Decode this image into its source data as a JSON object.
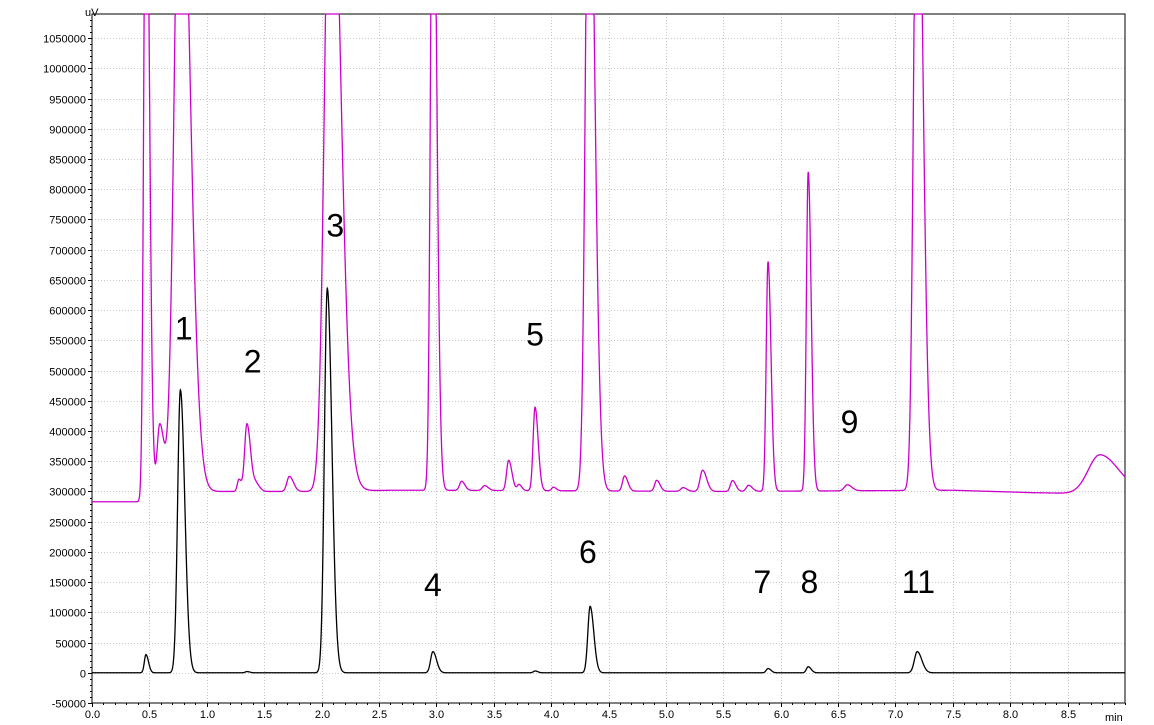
{
  "chart_data": {
    "type": "line",
    "title": "",
    "xlabel": "",
    "ylabel": "",
    "x_unit": "min",
    "y_unit": "uV",
    "xlim": [
      0.0,
      9.0
    ],
    "ylim": [
      -50000,
      1090000
    ],
    "grid": true,
    "x_ticks": [
      {
        "value": 0.0,
        "label": "0.0"
      },
      {
        "value": 0.5,
        "label": "0.5"
      },
      {
        "value": 1.0,
        "label": "1.0"
      },
      {
        "value": 1.5,
        "label": "1.5"
      },
      {
        "value": 2.0,
        "label": "2.0"
      },
      {
        "value": 2.5,
        "label": "2.5"
      },
      {
        "value": 3.0,
        "label": "3.0"
      },
      {
        "value": 3.5,
        "label": "3.5"
      },
      {
        "value": 4.0,
        "label": "4.0"
      },
      {
        "value": 4.5,
        "label": "4.5"
      },
      {
        "value": 5.0,
        "label": "5.0"
      },
      {
        "value": 5.5,
        "label": "5.5"
      },
      {
        "value": 6.0,
        "label": "6.0"
      },
      {
        "value": 6.5,
        "label": "6.5"
      },
      {
        "value": 7.0,
        "label": "7.0"
      },
      {
        "value": 7.5,
        "label": "7.5"
      },
      {
        "value": 8.0,
        "label": "8.0"
      },
      {
        "value": 8.5,
        "label": "8.5"
      }
    ],
    "y_ticks": [
      {
        "value": 1050000,
        "label": "1050000"
      },
      {
        "value": 1000000,
        "label": "1000000"
      },
      {
        "value": 950000,
        "label": "950000"
      },
      {
        "value": 900000,
        "label": "900000"
      },
      {
        "value": 850000,
        "label": "850000"
      },
      {
        "value": 800000,
        "label": "800000"
      },
      {
        "value": 750000,
        "label": "750000"
      },
      {
        "value": 700000,
        "label": "700000"
      },
      {
        "value": 650000,
        "label": "650000"
      },
      {
        "value": 600000,
        "label": "600000"
      },
      {
        "value": 550000,
        "label": "550000"
      },
      {
        "value": 500000,
        "label": "500000"
      },
      {
        "value": 450000,
        "label": "450000"
      },
      {
        "value": 400000,
        "label": "400000"
      },
      {
        "value": 350000,
        "label": "350000"
      },
      {
        "value": 300000,
        "label": "300000"
      },
      {
        "value": 250000,
        "label": "250000"
      },
      {
        "value": 200000,
        "label": "200000"
      },
      {
        "value": 150000,
        "label": "150000"
      },
      {
        "value": 100000,
        "label": "100000"
      },
      {
        "value": 50000,
        "label": "50000"
      },
      {
        "value": 0,
        "label": "0"
      },
      {
        "value": -50000,
        "label": "-50000"
      }
    ],
    "series": [
      {
        "color": "#cc00cc",
        "baseline": [
          [
            0.0,
            283000
          ],
          [
            0.42,
            283000
          ],
          [
            0.5,
            300000
          ],
          [
            2.0,
            300000
          ],
          [
            2.6,
            302000
          ],
          [
            3.0,
            302000
          ],
          [
            5.5,
            300000
          ],
          [
            7.5,
            302000
          ],
          [
            8.2,
            298000
          ],
          [
            8.5,
            297000
          ],
          [
            9.0,
            300000
          ]
        ],
        "peaks": [
          {
            "rt": 0.47,
            "height": 1200000,
            "width": 0.018
          },
          {
            "rt": 0.59,
            "height": 110000,
            "width": 0.022
          },
          {
            "rt": 0.77,
            "height": 1200000,
            "width": 0.05
          },
          {
            "rt": 1.28,
            "height": 20000,
            "width": 0.014
          },
          {
            "rt": 1.35,
            "height": 112000,
            "width": 0.02
          },
          {
            "rt": 1.43,
            "height": 12000,
            "width": 0.02
          },
          {
            "rt": 1.72,
            "height": 25000,
            "width": 0.022
          },
          {
            "rt": 2.08,
            "height": 1200000,
            "width": 0.05
          },
          {
            "rt": 2.2,
            "height": 30000,
            "width": 0.05
          },
          {
            "rt": 2.97,
            "height": 1200000,
            "width": 0.02
          },
          {
            "rt": 3.22,
            "height": 15000,
            "width": 0.018
          },
          {
            "rt": 3.42,
            "height": 8000,
            "width": 0.02
          },
          {
            "rt": 3.63,
            "height": 50000,
            "width": 0.018
          },
          {
            "rt": 3.72,
            "height": 10000,
            "width": 0.015
          },
          {
            "rt": 3.86,
            "height": 138000,
            "width": 0.017
          },
          {
            "rt": 4.02,
            "height": 6000,
            "width": 0.015
          },
          {
            "rt": 4.33,
            "height": 1200000,
            "width": 0.03
          },
          {
            "rt": 4.64,
            "height": 25000,
            "width": 0.018
          },
          {
            "rt": 4.92,
            "height": 18000,
            "width": 0.018
          },
          {
            "rt": 5.15,
            "height": 6000,
            "width": 0.02
          },
          {
            "rt": 5.32,
            "height": 35000,
            "width": 0.022
          },
          {
            "rt": 5.58,
            "height": 18000,
            "width": 0.018
          },
          {
            "rt": 5.72,
            "height": 10000,
            "width": 0.02
          },
          {
            "rt": 5.89,
            "height": 380000,
            "width": 0.016
          },
          {
            "rt": 6.24,
            "height": 528000,
            "width": 0.016
          },
          {
            "rt": 6.58,
            "height": 10000,
            "width": 0.025
          },
          {
            "rt": 7.19,
            "height": 1200000,
            "width": 0.03
          },
          {
            "rt": 8.78,
            "height": 62000,
            "width": 0.1
          }
        ]
      },
      {
        "color": "#000000",
        "baseline": [
          [
            0.0,
            0
          ],
          [
            9.0,
            0
          ]
        ],
        "peaks": [
          {
            "rt": 0.47,
            "height": 30000,
            "width": 0.014
          },
          {
            "rt": 0.77,
            "height": 468000,
            "width": 0.024
          },
          {
            "rt": 1.35,
            "height": 2000,
            "width": 0.015
          },
          {
            "rt": 2.05,
            "height": 636000,
            "width": 0.025
          },
          {
            "rt": 2.97,
            "height": 35000,
            "width": 0.02
          },
          {
            "rt": 3.86,
            "height": 3000,
            "width": 0.015
          },
          {
            "rt": 4.34,
            "height": 110000,
            "width": 0.02
          },
          {
            "rt": 5.89,
            "height": 7000,
            "width": 0.016
          },
          {
            "rt": 6.24,
            "height": 10000,
            "width": 0.016
          },
          {
            "rt": 7.19,
            "height": 35000,
            "width": 0.025
          }
        ]
      }
    ],
    "annotations": [
      {
        "text": "1",
        "x": 0.8,
        "y": 570000
      },
      {
        "text": "2",
        "x": 1.4,
        "y": 515000
      },
      {
        "text": "3",
        "x": 2.12,
        "y": 740000
      },
      {
        "text": "4",
        "x": 2.97,
        "y": 145000
      },
      {
        "text": "5",
        "x": 3.86,
        "y": 560000
      },
      {
        "text": "6",
        "x": 4.32,
        "y": 200000
      },
      {
        "text": "7",
        "x": 5.84,
        "y": 150000
      },
      {
        "text": "8",
        "x": 6.25,
        "y": 150000
      },
      {
        "text": "9",
        "x": 6.6,
        "y": 415000
      },
      {
        "text": "11",
        "x": 7.2,
        "y": 150000
      }
    ]
  }
}
